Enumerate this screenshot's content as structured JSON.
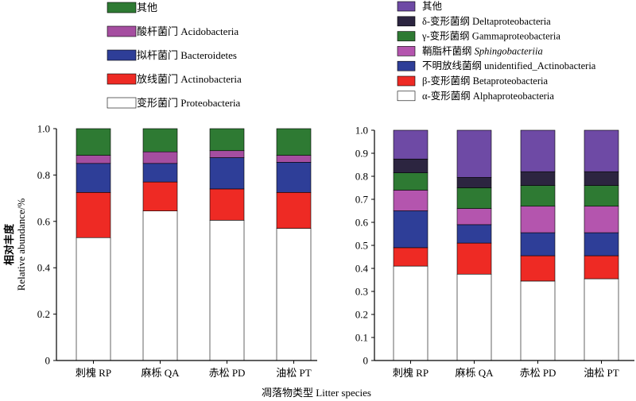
{
  "figure": {
    "y_label_cn": "相对丰度",
    "y_label_en": "Relative abundance/%",
    "x_label": "凋落物类型 Litter species"
  },
  "chart_data": [
    {
      "type": "bar",
      "stacked": true,
      "level": "phylum",
      "categories": [
        "刺槐 RP",
        "麻栎 QA",
        "赤松 PD",
        "油松 PT"
      ],
      "ylim": [
        0,
        1.0
      ],
      "yticks": [
        "0",
        "0.2",
        "0.4",
        "0.6",
        "0.8",
        "1.0"
      ],
      "legend_position": "top-left",
      "series": [
        {
          "name": "变形菌门 Proteobacteria",
          "color": "#ffffff",
          "values": [
            0.53,
            0.645,
            0.605,
            0.57
          ]
        },
        {
          "name": "放线菌门 Actinobacteria",
          "color": "#ee2a24",
          "values": [
            0.195,
            0.125,
            0.135,
            0.155
          ]
        },
        {
          "name": "拟杆菌门 Bacteroidetes",
          "color": "#2e3e98",
          "values": [
            0.125,
            0.08,
            0.135,
            0.13
          ]
        },
        {
          "name": "酸杆菌门 Acidobacteria",
          "color": "#a54ea0",
          "values": [
            0.035,
            0.05,
            0.03,
            0.03
          ]
        },
        {
          "name": "其他",
          "color": "#2e7a33",
          "values": [
            0.115,
            0.1,
            0.095,
            0.115
          ]
        }
      ]
    },
    {
      "type": "bar",
      "stacked": true,
      "level": "class",
      "categories": [
        "刺槐 RP",
        "麻栎 QA",
        "赤松 PD",
        "油松 PT"
      ],
      "ylim": [
        0,
        1.0
      ],
      "yticks": [
        "0",
        "0.1",
        "0.2",
        "0.3",
        "0.4",
        "0.5",
        "0.6",
        "0.7",
        "0.8",
        "0.9",
        "1.0"
      ],
      "legend_position": "top-right",
      "series": [
        {
          "name": "α-变形菌纲 Alphaproteobacteria",
          "color": "#ffffff",
          "values": [
            0.41,
            0.375,
            0.345,
            0.355
          ]
        },
        {
          "name": "β-变形菌纲 Betaproteobacteria",
          "color": "#ee2a24",
          "values": [
            0.08,
            0.135,
            0.11,
            0.1
          ]
        },
        {
          "name": "不明放线菌纲 unidentified_Actinobacteria",
          "color": "#2e3e98",
          "values": [
            0.16,
            0.08,
            0.1,
            0.1
          ]
        },
        {
          "name": "鞘脂杆菌纲 Sphingobacteriia",
          "color": "#b455ae",
          "values": [
            0.09,
            0.07,
            0.115,
            0.115
          ]
        },
        {
          "name": "γ-变形菌纲 Gammaproteobacteria",
          "color": "#2e7a33",
          "values": [
            0.075,
            0.09,
            0.09,
            0.09
          ]
        },
        {
          "name": "δ-变形菌纲 Deltaproteobacteria",
          "color": "#2c2540",
          "values": [
            0.06,
            0.045,
            0.06,
            0.06
          ]
        },
        {
          "name": "其他",
          "color": "#6e4aa5",
          "values": [
            0.125,
            0.205,
            0.18,
            0.18
          ]
        }
      ]
    }
  ]
}
